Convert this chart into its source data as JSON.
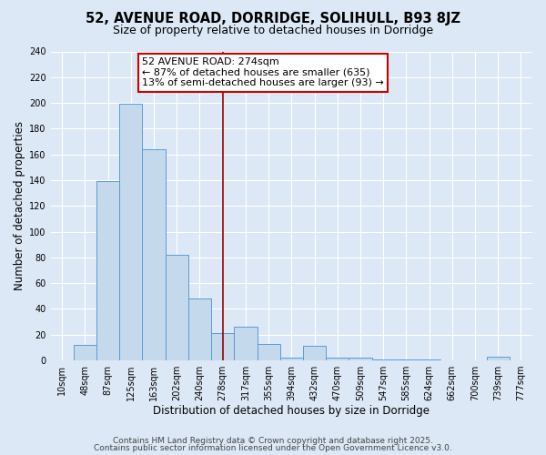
{
  "title": "52, AVENUE ROAD, DORRIDGE, SOLIHULL, B93 8JZ",
  "subtitle": "Size of property relative to detached houses in Dorridge",
  "xlabel": "Distribution of detached houses by size in Dorridge",
  "ylabel": "Number of detached properties",
  "bin_labels": [
    "10sqm",
    "48sqm",
    "87sqm",
    "125sqm",
    "163sqm",
    "202sqm",
    "240sqm",
    "278sqm",
    "317sqm",
    "355sqm",
    "394sqm",
    "432sqm",
    "470sqm",
    "509sqm",
    "547sqm",
    "585sqm",
    "624sqm",
    "662sqm",
    "700sqm",
    "739sqm",
    "777sqm"
  ],
  "bar_values": [
    0,
    12,
    139,
    199,
    164,
    82,
    48,
    21,
    26,
    13,
    2,
    11,
    2,
    2,
    1,
    1,
    1,
    0,
    0,
    3,
    0
  ],
  "bar_color": "#c5d9ec",
  "bar_edgecolor": "#5b9bd5",
  "vline_x_index": 7,
  "vline_color": "#990000",
  "annotation_line1": "52 AVENUE ROAD: 274sqm",
  "annotation_line2": "← 87% of detached houses are smaller (635)",
  "annotation_line3": "13% of semi-detached houses are larger (93) →",
  "annotation_box_edgecolor": "#cc0000",
  "annotation_box_facecolor": "#ffffff",
  "ylim": [
    0,
    240
  ],
  "yticks": [
    0,
    20,
    40,
    60,
    80,
    100,
    120,
    140,
    160,
    180,
    200,
    220,
    240
  ],
  "footer_line1": "Contains HM Land Registry data © Crown copyright and database right 2025.",
  "footer_line2": "Contains public sector information licensed under the Open Government Licence v3.0.",
  "bg_color": "#dce8f5",
  "plot_bg_color": "#dce8f5",
  "title_fontsize": 10.5,
  "subtitle_fontsize": 9,
  "axis_label_fontsize": 8.5,
  "tick_fontsize": 7,
  "annotation_fontsize": 8,
  "footer_fontsize": 6.5
}
